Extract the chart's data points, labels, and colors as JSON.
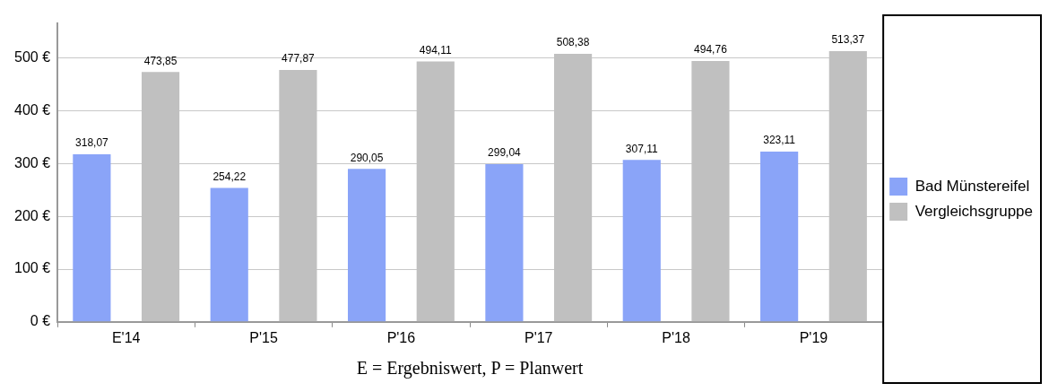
{
  "chart_data": {
    "type": "bar",
    "xlabel": "E = Ergebniswert, P = Planwert",
    "categories": [
      "E'14",
      "P'15",
      "P'16",
      "P'17",
      "P'18",
      "P'19"
    ],
    "series": [
      {
        "name": "Bad Münstereifel",
        "color": "#8aa4f8",
        "values": [
          318.07,
          254.22,
          290.05,
          299.04,
          307.11,
          323.11
        ],
        "value_labels": [
          "318,07",
          "254,22",
          "290,05",
          "299,04",
          "307,11",
          "323,11"
        ]
      },
      {
        "name": "Vergleichsgruppe",
        "color": "#c0c0c0",
        "values": [
          473.85,
          477.87,
          494.11,
          508.38,
          494.76,
          513.37
        ],
        "value_labels": [
          "473,85",
          "477,87",
          "494,11",
          "508,38",
          "494,76",
          "513,37"
        ]
      }
    ],
    "ylim": [
      0,
      567
    ],
    "yticks": [
      {
        "value": 0,
        "label": "0 €"
      },
      {
        "value": 100,
        "label": "100 €"
      },
      {
        "value": 200,
        "label": "200 €"
      },
      {
        "value": 300,
        "label": "300 €"
      },
      {
        "value": 400,
        "label": "400 €"
      },
      {
        "value": 500,
        "label": "500 €"
      }
    ],
    "grid": "y",
    "legend": "right"
  }
}
